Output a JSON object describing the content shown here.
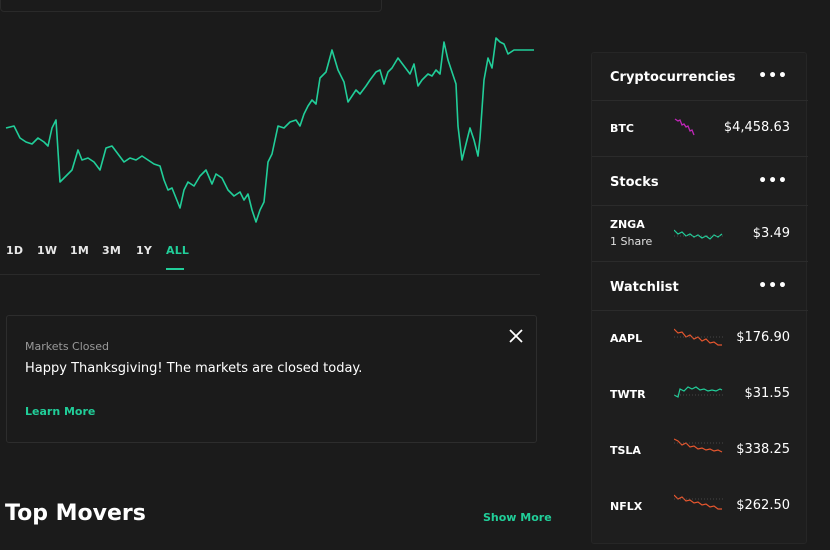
{
  "colors": {
    "background": "#1b1b1b",
    "accent_green": "#21ce99",
    "negative_red": "#e5562e",
    "crypto_magenta": "#c026b8"
  },
  "chart": {
    "range_tabs": [
      "1D",
      "1W",
      "1M",
      "3M",
      "1Y",
      "ALL"
    ],
    "active_range": "ALL"
  },
  "market_notice": {
    "label": "Markets Closed",
    "message": "Happy Thanksgiving! The markets are closed today.",
    "link": "Learn More",
    "close_icon": "close-icon"
  },
  "top_movers": {
    "title": "Top Movers",
    "show_more": "Show More"
  },
  "sidebar": {
    "more_icon": "ellipsis-icon",
    "crypto": {
      "title": "Cryptocurrencies",
      "items": [
        {
          "symbol": "BTC",
          "price": "$4,458.63",
          "trend": "down",
          "color": "#c026b8"
        }
      ]
    },
    "stocks": {
      "title": "Stocks",
      "items": [
        {
          "symbol": "ZNGA",
          "shares": "1 Share",
          "price": "$3.49",
          "trend": "flat",
          "color": "#21ce99"
        }
      ]
    },
    "watchlist": {
      "title": "Watchlist",
      "items": [
        {
          "symbol": "AAPL",
          "price": "$176.90",
          "trend": "down",
          "color": "#e5562e"
        },
        {
          "symbol": "TWTR",
          "price": "$31.55",
          "trend": "up",
          "color": "#21ce99"
        },
        {
          "symbol": "TSLA",
          "price": "$338.25",
          "trend": "down",
          "color": "#e5562e"
        },
        {
          "symbol": "NFLX",
          "price": "$262.50",
          "trend": "down",
          "color": "#e5562e"
        }
      ]
    }
  }
}
